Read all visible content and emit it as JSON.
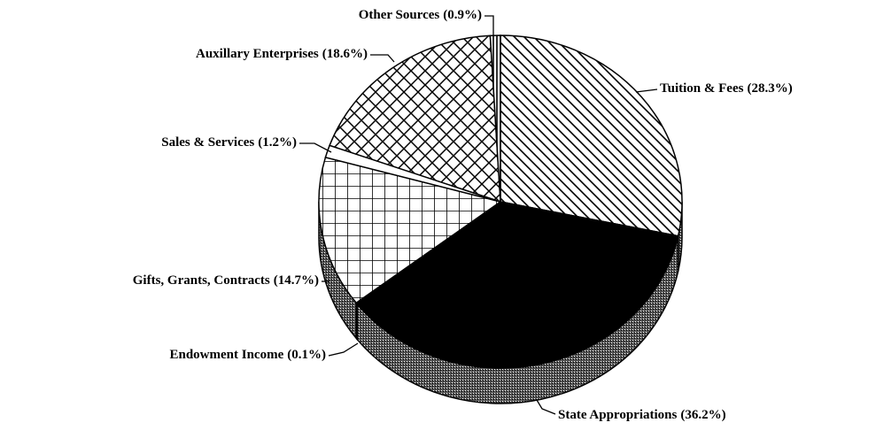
{
  "chart_data": {
    "type": "pie",
    "categories": [
      "Tuition & Fees",
      "State Appropriations",
      "Endowment Income",
      "Gifts, Grants, Contracts",
      "Sales & Services",
      "Auxillary Enterprises",
      "Other Sources"
    ],
    "values": [
      28.3,
      36.2,
      0.1,
      14.7,
      1.2,
      18.6,
      0.9
    ],
    "value_labels": [
      "(28.3%)",
      "(36.2%)",
      "(0.1%)",
      "(14.7%)",
      "(1.2%)",
      "(18.6%)",
      "(0.9%)"
    ]
  }
}
